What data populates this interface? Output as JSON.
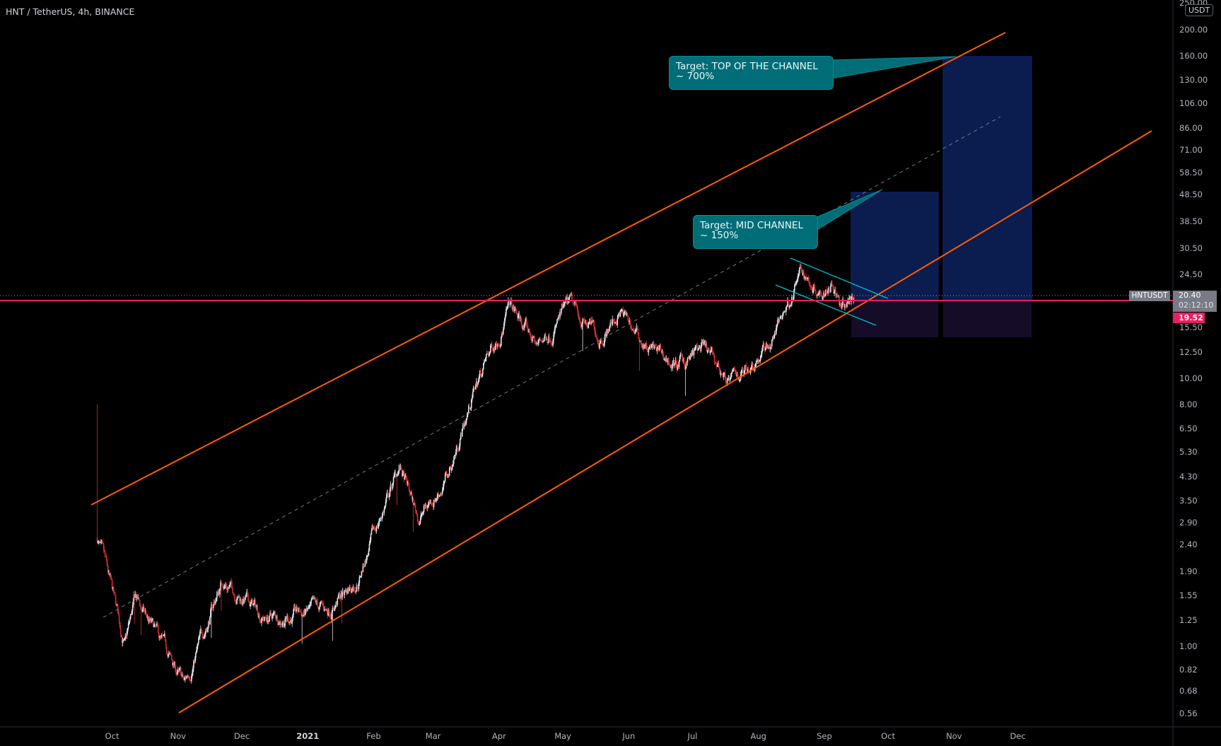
{
  "header": {
    "title": "HNT / TetherUS, 4h, BINANCE"
  },
  "price_axis": {
    "currency_badge": "USDT",
    "top_partial_label": "250.00",
    "labels": [
      "200.00",
      "160.00",
      "130.00",
      "106.00",
      "86.00",
      "71.00",
      "58.50",
      "48.50",
      "38.50",
      "30.50",
      "24.50",
      "15.50",
      "12.50",
      "10.00",
      "8.00",
      "6.50",
      "5.30",
      "4.30",
      "3.50",
      "2.90",
      "2.40",
      "1.90",
      "1.55",
      "1.25",
      "1.00",
      "0.82",
      "0.68",
      "0.56"
    ],
    "scale": "log"
  },
  "time_axis": {
    "labels": [
      "Oct",
      "Nov",
      "Dec",
      "2021",
      "Feb",
      "Mar",
      "Apr",
      "May",
      "Jun",
      "Jul",
      "Aug",
      "Sep",
      "Oct",
      "Nov",
      "Dec"
    ]
  },
  "last_price": {
    "symbol": "HNTUSDT",
    "price": "20.40",
    "countdown": "02:12:10",
    "horizontal_line_price": "19.52"
  },
  "annotations": {
    "callout_top": {
      "line1": "Target: TOP OF THE CHANNEL",
      "line2": "~ 700%"
    },
    "callout_mid": {
      "line1": "Target: MID CHANNEL",
      "line2": "~ 150%"
    }
  },
  "colors": {
    "background": "#000000",
    "channel": "#ff5d00",
    "midline": "#787b86",
    "wedge": "#00bcd4",
    "horizontal_line": "#e91e63",
    "candle_up": "#e0e3eb",
    "candle_down": "#d32f2f",
    "target_zone": "#0c1e5c",
    "stop_zone": "#1a0f2e",
    "callout": "#006d77"
  },
  "chart_data": {
    "type": "candlestick",
    "interval": "4h",
    "price_path_waypoints": [
      [
        "2020-09-24",
        8.0
      ],
      [
        "2020-09-24",
        2.55
      ],
      [
        "2020-10-07",
        1.0
      ],
      [
        "2020-10-12",
        1.49
      ],
      [
        "2020-11-04",
        0.71
      ],
      [
        "2020-11-22",
        1.77
      ],
      [
        "2020-12-12",
        1.28
      ],
      [
        "2021-01-10",
        1.35
      ],
      [
        "2021-01-25",
        1.82
      ],
      [
        "2021-02-13",
        4.65
      ],
      [
        "2021-02-22",
        3.0
      ],
      [
        "2021-03-08",
        4.3
      ],
      [
        "2021-03-21",
        9.4
      ],
      [
        "2021-04-06",
        18.4
      ],
      [
        "2021-04-19",
        13.2
      ],
      [
        "2021-05-04",
        18.4
      ],
      [
        "2021-05-18",
        14.3
      ],
      [
        "2021-05-28",
        17.6
      ],
      [
        "2021-06-09",
        13.2
      ],
      [
        "2021-06-24",
        11.0
      ],
      [
        "2021-07-05",
        12.8
      ],
      [
        "2021-07-19",
        9.7
      ],
      [
        "2021-08-07",
        13.7
      ],
      [
        "2021-08-21",
        24.8
      ],
      [
        "2021-08-29",
        22.0
      ],
      [
        "2021-09-05",
        23.8
      ],
      [
        "2021-09-09",
        17.6
      ],
      [
        "2021-09-15",
        20.4
      ]
    ],
    "ylim": [
      0.5,
      260
    ]
  }
}
